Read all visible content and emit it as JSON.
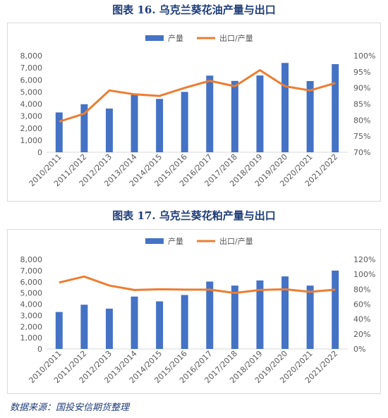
{
  "titles": {
    "chart1": "图表 16.  乌克兰葵花油产量与出口",
    "chart2": "图表 17.  乌克兰葵花粕产量与出口"
  },
  "source": "数据来源：国投安信期货整理",
  "colors": {
    "bar": "#4472c4",
    "line": "#ed7d31",
    "grid": "#d9d9d9"
  },
  "chart_data": [
    {
      "type": "bar",
      "title": "图表 16.  乌克兰葵花油产量与出口",
      "categories": [
        "2010/2011",
        "2011/2012",
        "2012/2013",
        "2013/2014",
        "2014/2015",
        "2015/2016",
        "2016/2017",
        "2017/2018",
        "2018/2019",
        "2019/2020",
        "2020/2021",
        "2021/2022"
      ],
      "series": [
        {
          "name": "产量",
          "type": "bar",
          "axis": "left",
          "values": [
            3300,
            3980,
            3620,
            4760,
            4420,
            5000,
            6350,
            5910,
            6360,
            7400,
            5900,
            7300
          ]
        },
        {
          "name": "出口/产量",
          "type": "line",
          "axis": "right",
          "values": [
            79.5,
            82,
            89.2,
            88,
            87.5,
            90,
            92.2,
            90.5,
            95.5,
            90.5,
            89.2,
            91.5
          ]
        }
      ],
      "y_left": {
        "ylim": [
          0,
          8000
        ],
        "ticks": [
          "0",
          "1,000",
          "2,000",
          "3,000",
          "4,000",
          "5,000",
          "6,000",
          "7,000",
          "8,000"
        ]
      },
      "y_right": {
        "ylim": [
          70,
          100
        ],
        "ticks": [
          "70%",
          "75%",
          "80%",
          "85%",
          "90%",
          "95%",
          "100%"
        ]
      },
      "legend": "top-center",
      "grid": false
    },
    {
      "type": "bar",
      "title": "图表 17.  乌克兰葵花粕产量与出口",
      "categories": [
        "2010/2011",
        "2011/2012",
        "2012/2013",
        "2013/2014",
        "2014/2015",
        "2015/2016",
        "2016/2017",
        "2017/2018",
        "2018/2019",
        "2019/2020",
        "2020/2021",
        "2021/2022"
      ],
      "series": [
        {
          "name": "产量",
          "type": "bar",
          "axis": "left",
          "values": [
            3300,
            3950,
            3600,
            4680,
            4250,
            4820,
            6020,
            5660,
            6120,
            6480,
            5660,
            7000
          ]
        },
        {
          "name": "出口/产量",
          "type": "line",
          "axis": "right",
          "values": [
            89,
            97,
            85,
            79,
            80,
            79.5,
            79.5,
            75,
            79,
            80,
            76.5,
            79.5
          ]
        }
      ],
      "y_left": {
        "ylim": [
          0,
          8000
        ],
        "ticks": [
          "0",
          "1,000",
          "2,000",
          "3,000",
          "4,000",
          "5,000",
          "6,000",
          "7,000",
          "8,000"
        ]
      },
      "y_right": {
        "ylim": [
          0,
          120
        ],
        "ticks": [
          "0%",
          "20%",
          "40%",
          "60%",
          "80%",
          "100%",
          "120%"
        ]
      },
      "legend": "top-center",
      "grid": false
    }
  ]
}
